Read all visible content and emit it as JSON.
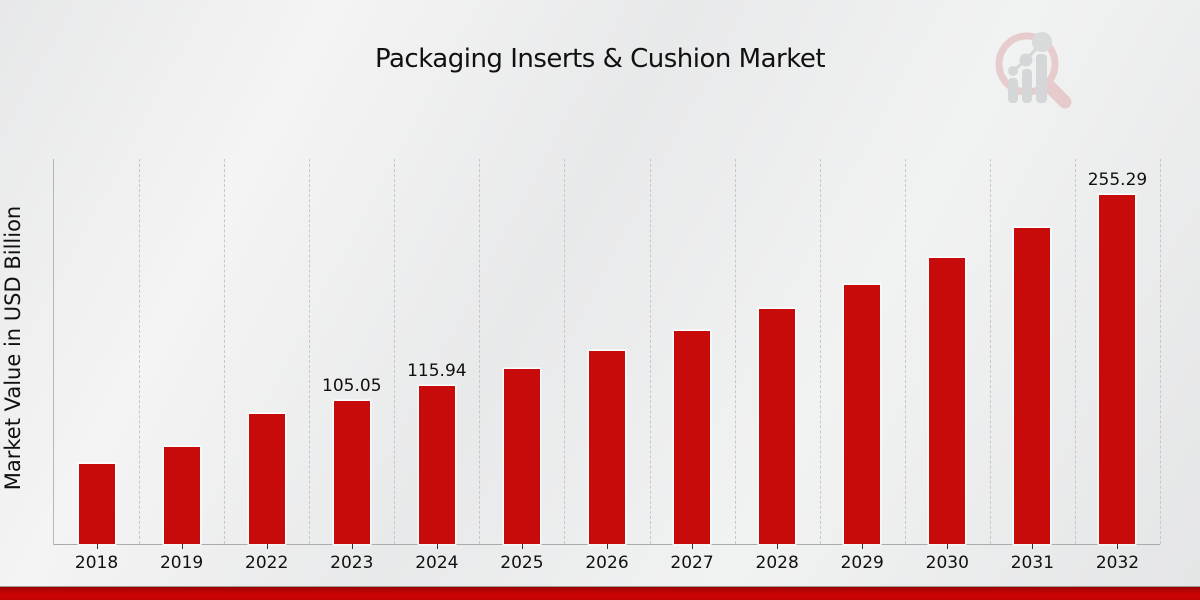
{
  "title": "Packaging Inserts & Cushion Market",
  "watermark": "market-research-future-logo",
  "colors": {
    "bar": "#c70b0b",
    "grid": "#c7c7c7",
    "axis": "#ababab",
    "text": "#111111",
    "footer_red": "#c50404",
    "logo_ring": "#dfaeb0",
    "logo_gray": "#bfc1c3"
  },
  "chart_data": {
    "type": "bar",
    "title": "Packaging Inserts & Cushion Market",
    "xlabel": "",
    "ylabel": "Market Value in USD Billion",
    "categories": [
      "2018",
      "2019",
      "2022",
      "2023",
      "2024",
      "2025",
      "2026",
      "2027",
      "2028",
      "2029",
      "2030",
      "2031",
      "2032"
    ],
    "values": [
      58.5,
      70.8,
      95.18,
      105.05,
      115.94,
      127.96,
      141.22,
      155.86,
      172.02,
      189.85,
      209.53,
      231.25,
      255.29
    ],
    "data_labels": [
      null,
      null,
      null,
      "105.05",
      "115.94",
      null,
      null,
      null,
      null,
      null,
      null,
      null,
      "255.29"
    ],
    "ylim": [
      0,
      282
    ],
    "grid": "vertical-dashed-category-boundaries",
    "legend": "none",
    "bar_color": "#c70b0b"
  }
}
